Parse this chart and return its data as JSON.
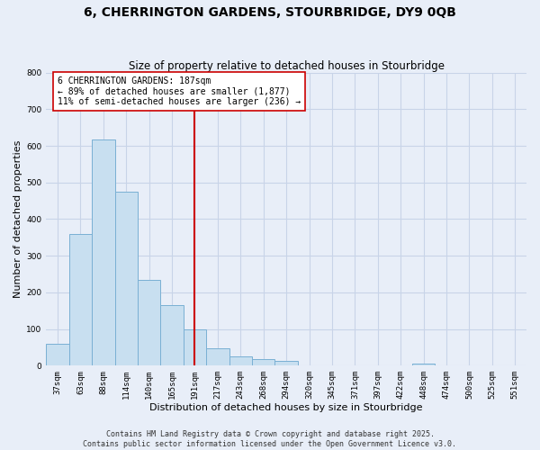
{
  "title": "6, CHERRINGTON GARDENS, STOURBRIDGE, DY9 0QB",
  "subtitle": "Size of property relative to detached houses in Stourbridge",
  "xlabel": "Distribution of detached houses by size in Stourbridge",
  "ylabel": "Number of detached properties",
  "bar_labels": [
    "37sqm",
    "63sqm",
    "88sqm",
    "114sqm",
    "140sqm",
    "165sqm",
    "191sqm",
    "217sqm",
    "243sqm",
    "268sqm",
    "294sqm",
    "320sqm",
    "345sqm",
    "371sqm",
    "397sqm",
    "422sqm",
    "448sqm",
    "474sqm",
    "500sqm",
    "525sqm",
    "551sqm"
  ],
  "bar_values": [
    60,
    360,
    617,
    474,
    235,
    165,
    98,
    47,
    25,
    18,
    12,
    0,
    0,
    0,
    0,
    0,
    5,
    0,
    0,
    0,
    0
  ],
  "bar_color": "#c8dff0",
  "bar_edge_color": "#7ab0d4",
  "vline_x_index": 6,
  "vline_color": "#cc0000",
  "annotation_text": "6 CHERRINGTON GARDENS: 187sqm\n← 89% of detached houses are smaller (1,877)\n11% of semi-detached houses are larger (236) →",
  "annotation_box_color": "#ffffff",
  "annotation_box_edge": "#cc0000",
  "ylim": [
    0,
    800
  ],
  "yticks": [
    0,
    100,
    200,
    300,
    400,
    500,
    600,
    700,
    800
  ],
  "grid_color": "#c8d4e8",
  "background_color": "#e8eef8",
  "footer_line1": "Contains HM Land Registry data © Crown copyright and database right 2025.",
  "footer_line2": "Contains public sector information licensed under the Open Government Licence v3.0.",
  "title_fontsize": 10,
  "subtitle_fontsize": 8.5,
  "xlabel_fontsize": 8,
  "ylabel_fontsize": 8,
  "tick_fontsize": 6.5,
  "annotation_fontsize": 7,
  "footer_fontsize": 6
}
